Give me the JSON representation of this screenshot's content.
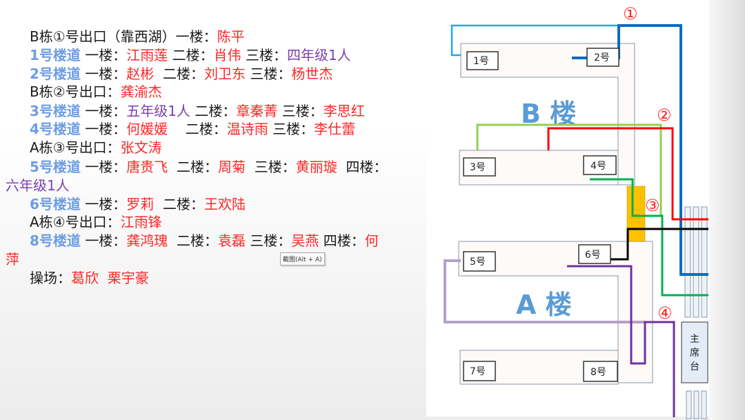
{
  "lines": [
    [
      {
        "t": "B栋①号出口（靠西湖）一楼：",
        "c": "k"
      },
      {
        "t": "陈平",
        "c": "r"
      }
    ],
    [
      {
        "t": "1号楼道",
        "c": "b"
      },
      {
        "t": " 一楼：",
        "c": "k"
      },
      {
        "t": "江雨莲",
        "c": "r"
      },
      {
        "t": " 二楼：",
        "c": "k"
      },
      {
        "t": "肖伟",
        "c": "r"
      },
      {
        "t": " 三楼：",
        "c": "k"
      },
      {
        "t": "四年级1人",
        "c": "p"
      }
    ],
    [
      {
        "t": "2号楼道",
        "c": "b"
      },
      {
        "t": " 一楼：",
        "c": "k"
      },
      {
        "t": "赵彬",
        "c": "r"
      },
      {
        "t": "  二楼：",
        "c": "k"
      },
      {
        "t": "刘卫东",
        "c": "r"
      },
      {
        "t": " 三楼：",
        "c": "k"
      },
      {
        "t": "杨世杰",
        "c": "r"
      }
    ],
    [
      {
        "t": "B栋②号出口：",
        "c": "k"
      },
      {
        "t": "龚渝杰",
        "c": "r"
      }
    ],
    [
      {
        "t": "3号楼道",
        "c": "b"
      },
      {
        "t": " 一楼：",
        "c": "k"
      },
      {
        "t": "五年级1人",
        "c": "p"
      },
      {
        "t": " 二楼：",
        "c": "k"
      },
      {
        "t": "章秦菁",
        "c": "r"
      },
      {
        "t": " 三楼：",
        "c": "k"
      },
      {
        "t": "李思红",
        "c": "r"
      }
    ],
    [
      {
        "t": "4号楼道",
        "c": "b"
      },
      {
        "t": " 一楼：",
        "c": "k"
      },
      {
        "t": "何媛媛",
        "c": "r"
      },
      {
        "t": "    二楼：",
        "c": "k"
      },
      {
        "t": "温诗雨",
        "c": "r"
      },
      {
        "t": " 三楼：",
        "c": "k"
      },
      {
        "t": "李仕蕾",
        "c": "r"
      }
    ],
    [
      {
        "t": "A栋③号出口：",
        "c": "k"
      },
      {
        "t": "张文涛",
        "c": "r"
      }
    ],
    [
      {
        "t": "5号楼道",
        "c": "b"
      },
      {
        "t": " 一楼：",
        "c": "k"
      },
      {
        "t": "唐贵飞",
        "c": "r"
      },
      {
        "t": "  二楼：",
        "c": "k"
      },
      {
        "t": "周菊",
        "c": "r"
      },
      {
        "t": "  三楼：",
        "c": "k"
      },
      {
        "t": "黄丽璇",
        "c": "r"
      },
      {
        "t": "  四楼：",
        "c": "k"
      }
    ],
    [
      {
        "t": "六年级1人",
        "c": "p"
      }
    ],
    [
      {
        "t": "6号楼道",
        "c": "b"
      },
      {
        "t": " 一楼：",
        "c": "k"
      },
      {
        "t": "罗莉",
        "c": "r"
      },
      {
        "t": "  二楼：",
        "c": "k"
      },
      {
        "t": "王欢陆",
        "c": "r"
      }
    ],
    [
      {
        "t": "A栋④号出口：",
        "c": "k"
      },
      {
        "t": "江雨锋",
        "c": "r"
      }
    ],
    [
      {
        "t": "8号楼道",
        "c": "b"
      },
      {
        "t": " 一楼：",
        "c": "k"
      },
      {
        "t": "龚鸿瑰",
        "c": "r"
      },
      {
        "t": "  二楼：",
        "c": "k"
      },
      {
        "t": "袁磊",
        "c": "r"
      },
      {
        "t": " 三楼：",
        "c": "k"
      },
      {
        "t": "吴燕",
        "c": "r"
      },
      {
        "t": " 四楼：",
        "c": "k"
      },
      {
        "t": "何",
        "c": "r"
      }
    ],
    [
      {
        "t": "萍",
        "c": "r"
      }
    ],
    [
      {
        "t": "操场：",
        "c": "k"
      },
      {
        "t": "葛欣",
        "c": "r"
      },
      {
        "t": "  栗宇豪",
        "c": "r"
      }
    ]
  ],
  "tooltip": "截图(Alt + A)",
  "diagram": {
    "buildings": {
      "b": "B 楼",
      "a": "A 楼"
    },
    "stairs": [
      "1号",
      "2号",
      "3号",
      "4号",
      "5号",
      "6号",
      "7号",
      "8号"
    ],
    "exits": [
      "①",
      "②",
      "③",
      "④"
    ],
    "rostrum": [
      "主",
      "席",
      "台"
    ],
    "colors": {
      "exit1_a": "#1ea7e6",
      "exit1_b": "#0a6cc4",
      "exit2_a": "#92d050",
      "exit2_b": "#ff0000",
      "exit3_a": "#00b050",
      "exit3_b": "#000000",
      "exit4_a": "#b4a0c8",
      "exit4_b": "#7030a0",
      "corridor": "#ffc000"
    }
  }
}
